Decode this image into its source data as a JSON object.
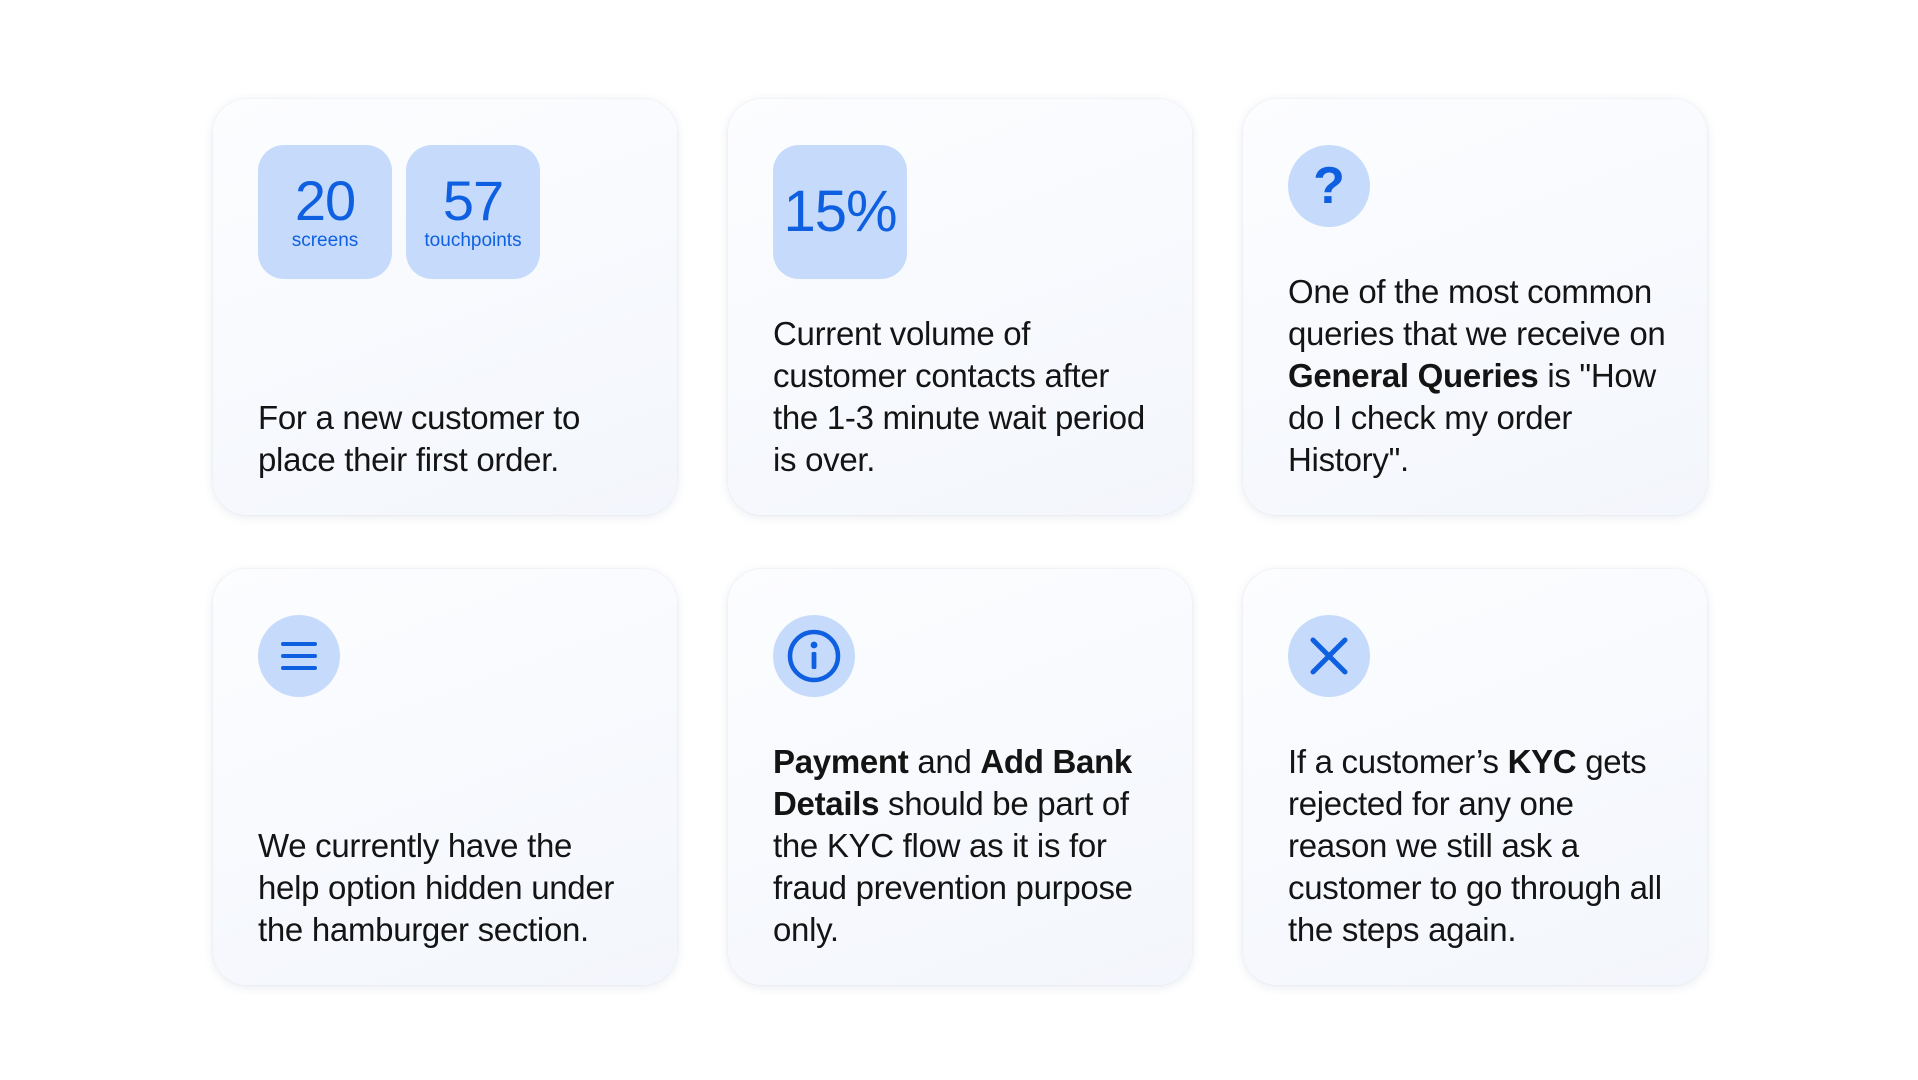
{
  "cards": [
    {
      "badges": [
        {
          "value": "20",
          "unit": "screens"
        },
        {
          "value": "57",
          "unit": "touchpoints"
        }
      ],
      "text": "For a new customer to place their first order."
    },
    {
      "badge": {
        "value": "15%"
      },
      "text": "Current volume of customer contacts after the 1-3 minute wait period is over."
    },
    {
      "icon": "question-mark-icon",
      "icon_glyph": "?",
      "text_parts": [
        "One of the most common queries that we receive on ",
        "General Queries",
        " is \"How do I check my order History\"."
      ]
    },
    {
      "icon": "hamburger-menu-icon",
      "text": "We currently have the help option hidden under the hamburger section."
    },
    {
      "icon": "info-icon",
      "text_parts": [
        "Payment",
        " and ",
        "Add Bank Details",
        " should be part of the KYC flow as it is for fraud prevention purpose only."
      ]
    },
    {
      "icon": "close-icon",
      "text_parts": [
        "If a customer’s ",
        "KYC",
        " gets rejected for any one reason we still ask a customer to go through all the steps again."
      ]
    }
  ],
  "colors": {
    "accent": "#0f60e0",
    "badge_background": "#c6dbfb",
    "text": "#141414",
    "card_background": "#f6f8fd"
  }
}
